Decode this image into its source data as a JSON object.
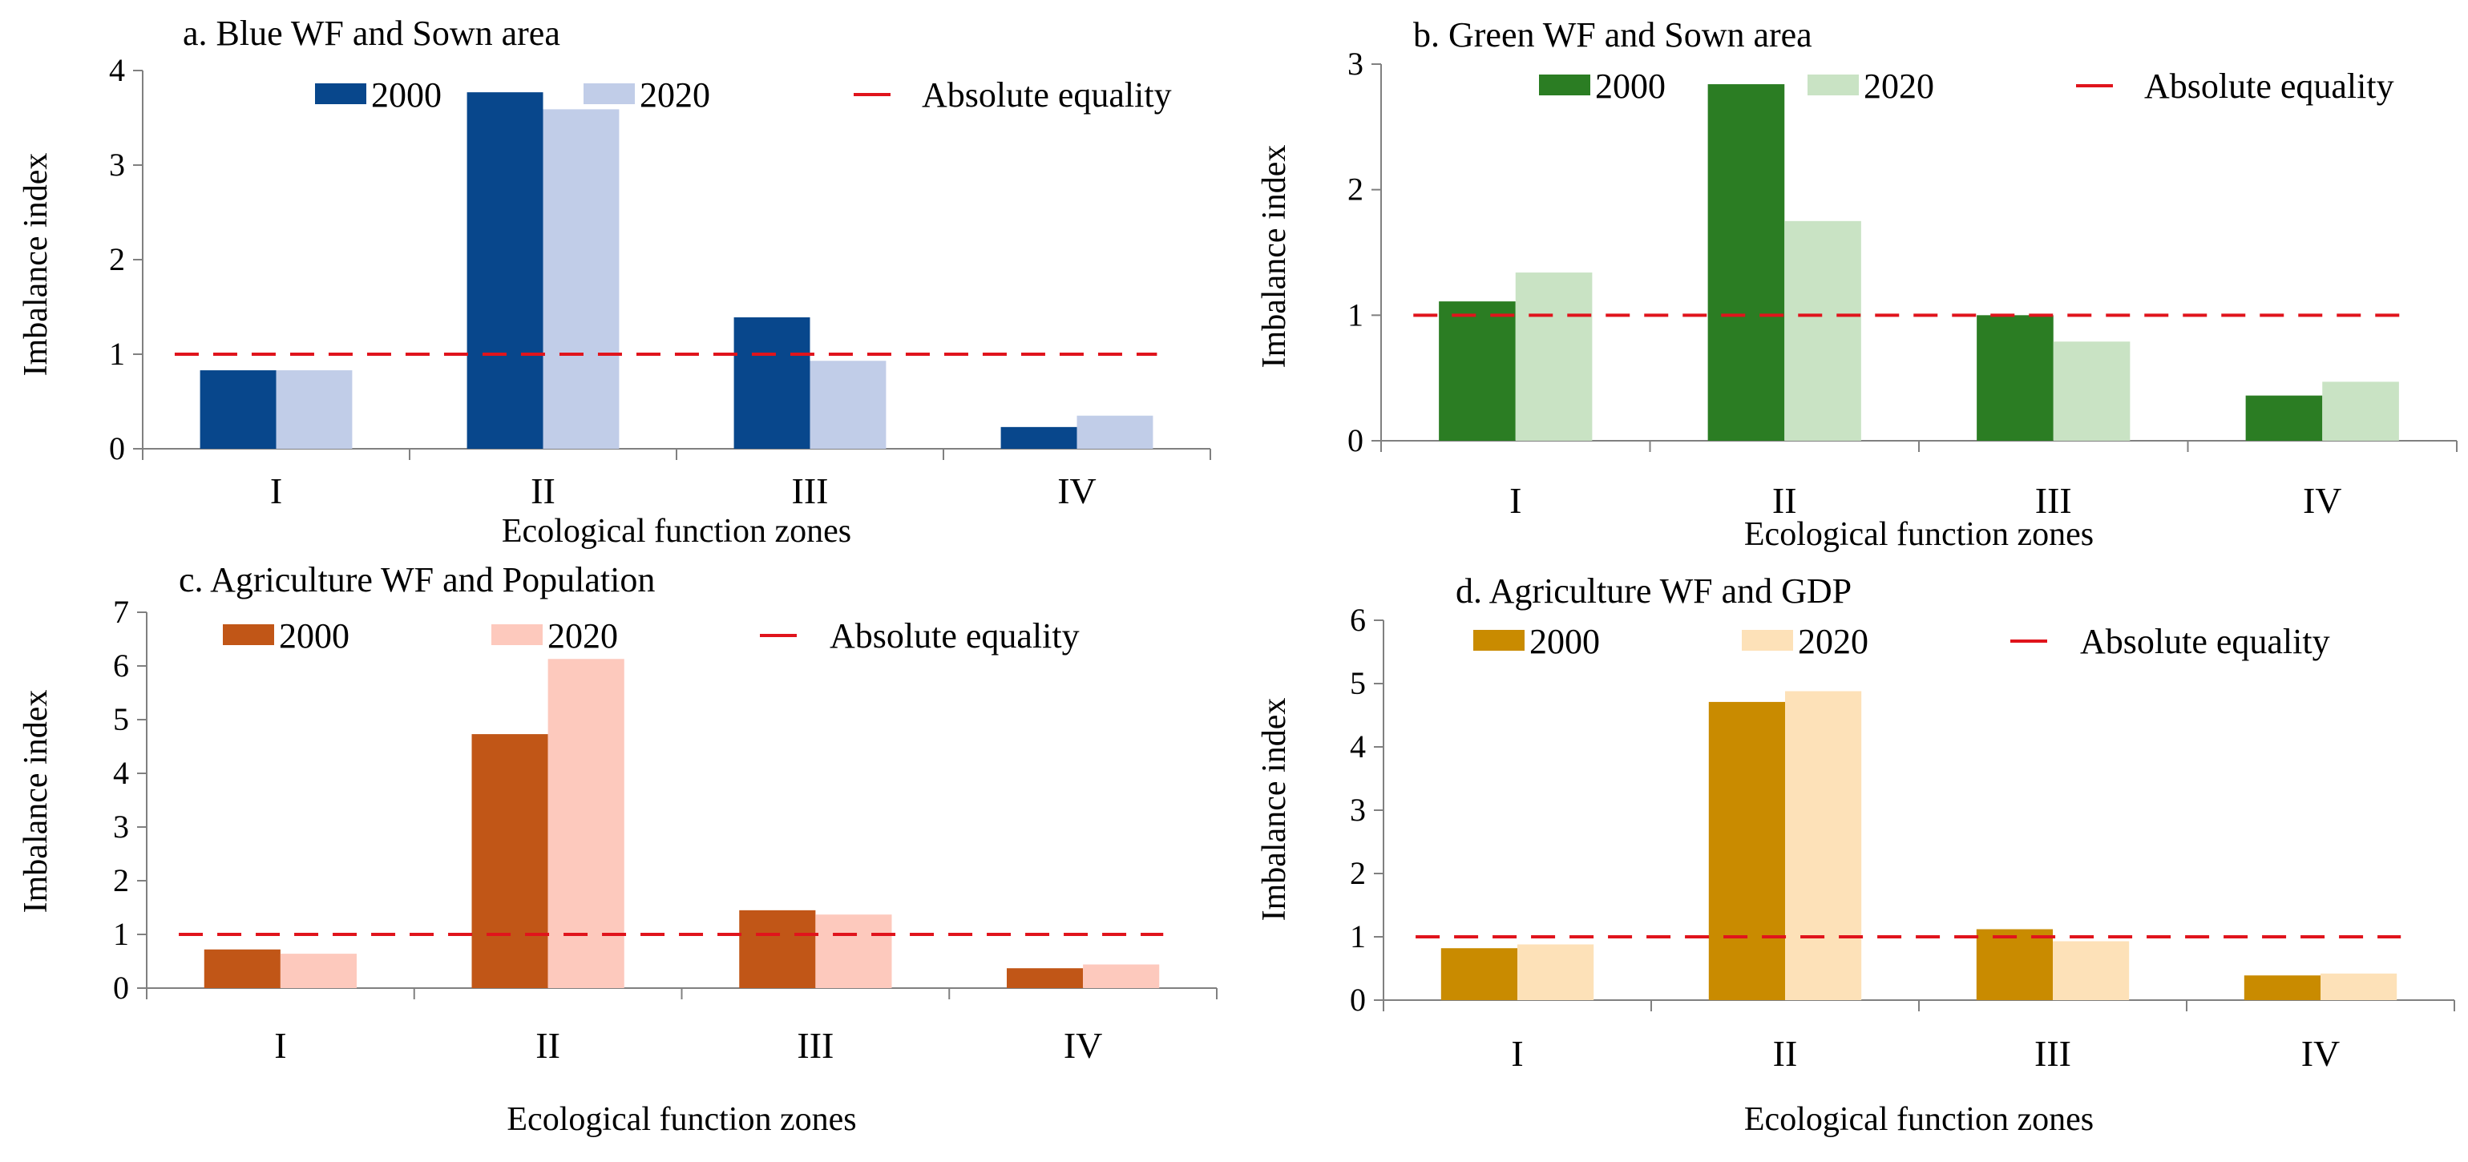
{
  "chart_data": [
    {
      "type": "bar",
      "title": "a. Blue WF and Sown area",
      "xlabel": "Ecological function zones",
      "ylabel": "Imbalance index",
      "categories": [
        "I",
        "II",
        "III",
        "IV"
      ],
      "ylim": [
        0,
        4
      ],
      "yticks": [
        0,
        1,
        2,
        3,
        4
      ],
      "series": [
        {
          "name": "2000",
          "values": [
            0.83,
            3.77,
            1.39,
            0.23
          ],
          "color": "#08478c"
        },
        {
          "name": "2020",
          "values": [
            0.83,
            3.59,
            0.93,
            0.35
          ],
          "color": "#c1cde8"
        }
      ],
      "reference": {
        "name": "Absolute equality",
        "value": 1,
        "color": "#e0141c"
      }
    },
    {
      "type": "bar",
      "title": "b. Green WF and Sown area",
      "xlabel": "Ecological function zones",
      "ylabel": "Imbalance index",
      "categories": [
        "I",
        "II",
        "III",
        "IV"
      ],
      "ylim": [
        0,
        3
      ],
      "yticks": [
        0,
        1,
        2,
        3
      ],
      "series": [
        {
          "name": "2000",
          "values": [
            1.11,
            2.84,
            1.0,
            0.36
          ],
          "color": "#2b7d23"
        },
        {
          "name": "2020",
          "values": [
            1.34,
            1.75,
            0.79,
            0.47
          ],
          "color": "#c9e3c4"
        }
      ],
      "reference": {
        "name": "Absolute equality",
        "value": 1,
        "color": "#e0141c"
      }
    },
    {
      "type": "bar",
      "title": "c. Agriculture WF and Population",
      "xlabel": "Ecological function zones",
      "ylabel": "Imbalance index",
      "categories": [
        "I",
        "II",
        "III",
        "IV"
      ],
      "ylim": [
        0,
        7
      ],
      "yticks": [
        0,
        1,
        2,
        3,
        4,
        5,
        6,
        7
      ],
      "series": [
        {
          "name": "2000",
          "values": [
            0.72,
            4.73,
            1.45,
            0.37
          ],
          "color": "#c15617"
        },
        {
          "name": "2020",
          "values": [
            0.64,
            6.13,
            1.37,
            0.44
          ],
          "color": "#fdc9bd"
        }
      ],
      "reference": {
        "name": "Absolute equality",
        "value": 1,
        "color": "#e0141c"
      }
    },
    {
      "type": "bar",
      "title": "d. Agriculture WF and GDP",
      "xlabel": "Ecological function zones",
      "ylabel": "Imbalance index",
      "categories": [
        "I",
        "II",
        "III",
        "IV"
      ],
      "ylim": [
        0,
        6
      ],
      "yticks": [
        0,
        1,
        2,
        3,
        4,
        5,
        6
      ],
      "series": [
        {
          "name": "2000",
          "values": [
            0.82,
            4.71,
            1.12,
            0.39
          ],
          "color": "#c98b00"
        },
        {
          "name": "2020",
          "values": [
            0.88,
            4.88,
            0.93,
            0.42
          ],
          "color": "#fde1b8"
        }
      ],
      "reference": {
        "name": "Absolute equality",
        "value": 1,
        "color": "#e0141c"
      }
    }
  ]
}
